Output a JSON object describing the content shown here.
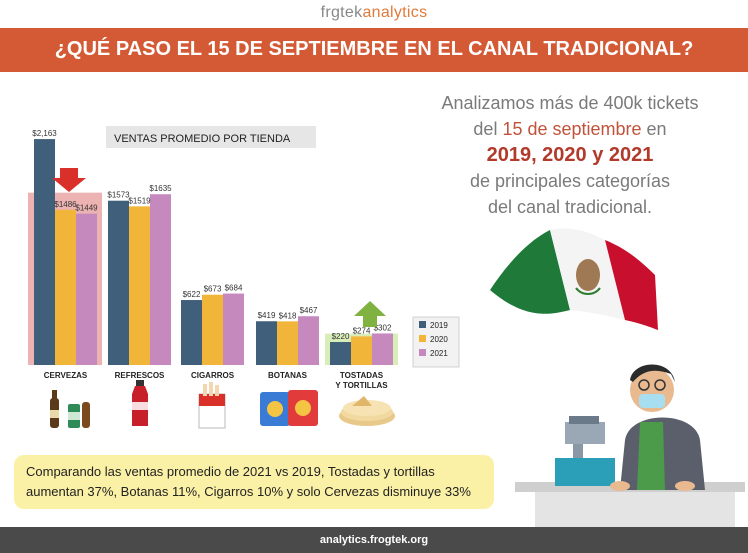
{
  "brand": {
    "part1": "frgtek",
    "part2": "analytics"
  },
  "banner": {
    "title": "¿QUÉ PASO EL 15 DE SEPTIEMBRE EN EL CANAL TRADICIONAL?"
  },
  "intro": {
    "line1": "Analizamos más de 400k tickets",
    "line2a": "del ",
    "line2b": "15 de septiembre",
    "line2c": " en",
    "line3": "2019, 2020 y 2021",
    "line4": "de principales categorías",
    "line5": "del canal tradicional."
  },
  "summary": {
    "text": "Comparando las ventas promedio de 2021 vs 2019, Tostadas y tortillas aumentan 37%, Botanas 11%, Cigarros 10% y solo Cervezas disminuye 33%"
  },
  "footer": {
    "url": "analytics.frogtek.org"
  },
  "colors": {
    "s2019": "#3f5f7a",
    "s2020": "#f1b53a",
    "s2021": "#c589bd",
    "highlight": "#e8a0a0",
    "highlight2": "#d8edb8",
    "arrow_down": "#d9302a",
    "arrow_up": "#7fb241"
  },
  "chart_data": {
    "type": "bar",
    "title": "VENTAS PROMEDIO POR TIENDA",
    "categories": [
      "CERVEZAS",
      "REFRESCOS",
      "CIGARROS",
      "BOTANAS",
      "TOSTADAS Y TORTILLAS"
    ],
    "series": [
      {
        "name": "2019",
        "values": [
          2163,
          1573,
          622,
          419,
          220
        ],
        "labels": [
          "$2,163",
          "$1573",
          "$622",
          "$419",
          "$220"
        ]
      },
      {
        "name": "2020",
        "values": [
          1486,
          1519,
          673,
          418,
          274
        ],
        "labels": [
          "$1486",
          "$1519",
          "$673",
          "$418",
          "$274"
        ]
      },
      {
        "name": "2021",
        "values": [
          1449,
          1635,
          684,
          467,
          302
        ],
        "labels": [
          "$1449",
          "$1635",
          "$684",
          "$467",
          "$302"
        ]
      }
    ],
    "legend_position": "right",
    "ylim": [
      0,
      2250
    ],
    "annotations": [
      {
        "category": "CERVEZAS",
        "arrow": "down"
      },
      {
        "category": "TOSTADAS Y TORTILLAS",
        "arrow": "up"
      }
    ]
  }
}
